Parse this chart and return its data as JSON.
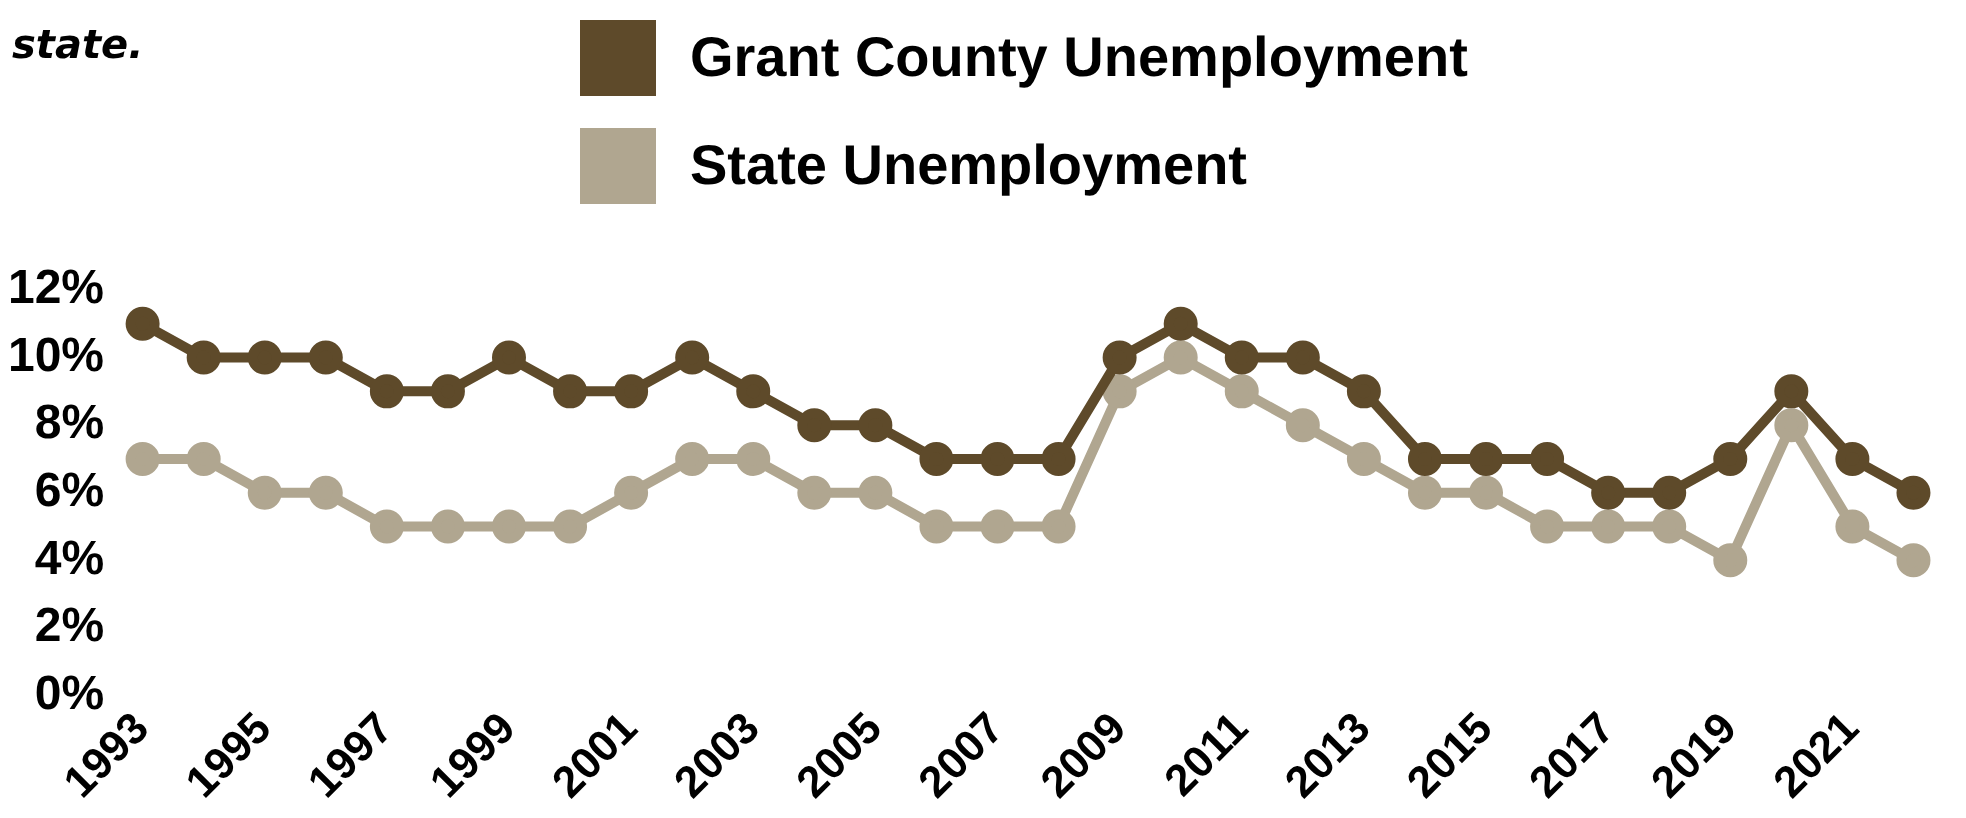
{
  "chart_data": {
    "type": "line",
    "annotations": [
      "state."
    ],
    "categories": [
      "1993",
      null,
      "1995",
      null,
      "1997",
      null,
      "1999",
      null,
      "2001",
      null,
      "2003",
      null,
      "2005",
      null,
      "2007",
      null,
      "2009",
      null,
      "2011",
      null,
      "2013",
      null,
      "2015",
      null,
      "2017",
      null,
      "2019",
      null,
      "2021",
      null
    ],
    "series": [
      {
        "name": "Grant County Unemployment",
        "color": "#5e4a2a",
        "values": [
          11,
          10,
          10,
          10,
          9,
          9,
          10,
          9,
          9,
          10,
          9,
          8,
          8,
          7,
          7,
          7,
          10,
          11,
          10,
          10,
          9,
          7,
          7,
          7,
          6,
          6,
          7,
          9,
          7,
          6
        ]
      },
      {
        "name": "State Unemployment",
        "color": "#b0a690",
        "values": [
          7,
          7,
          6,
          6,
          5,
          5,
          5,
          5,
          6,
          7,
          7,
          6,
          6,
          5,
          5,
          5,
          9,
          10,
          9,
          8,
          7,
          6,
          6,
          5,
          5,
          5,
          4,
          8,
          5,
          4
        ]
      }
    ],
    "ylim": [
      0,
      12
    ],
    "yticks": [
      {
        "value": 0,
        "label": "0%"
      },
      {
        "value": 2,
        "label": "2%"
      },
      {
        "value": 4,
        "label": "4%"
      },
      {
        "value": 6,
        "label": "6%"
      },
      {
        "value": 8,
        "label": "8%"
      },
      {
        "value": 10,
        "label": "10%"
      },
      {
        "value": 12,
        "label": "12%"
      }
    ],
    "grid": false,
    "legend": "top",
    "marker": "circle",
    "line_style": "solid"
  }
}
